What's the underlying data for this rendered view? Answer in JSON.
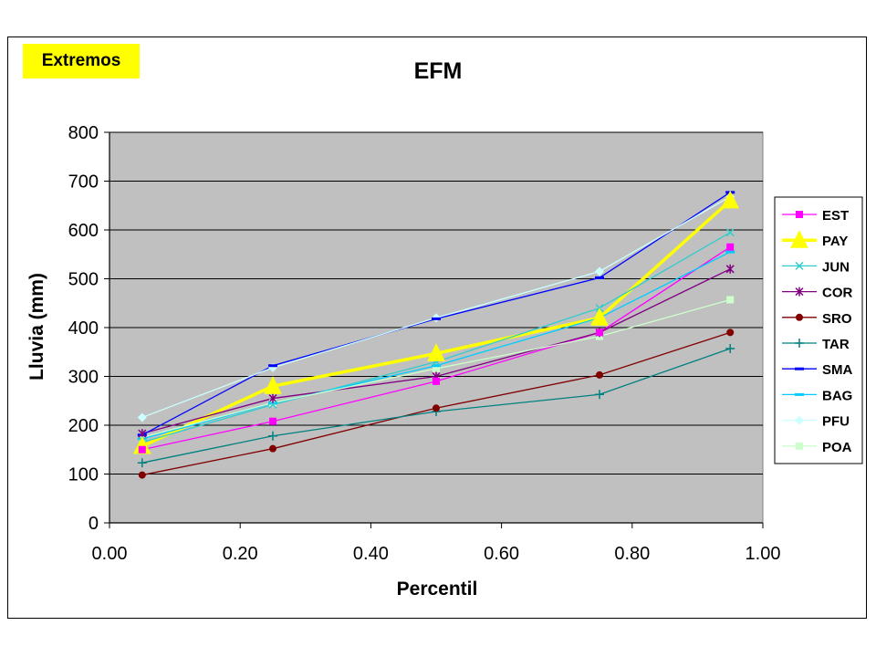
{
  "badge": "Extremos",
  "chart_data": {
    "type": "line",
    "title": "EFM",
    "xlabel": "Percentil",
    "ylabel": "Lluvia (mm)",
    "xlim": [
      0,
      1
    ],
    "ylim": [
      0,
      800
    ],
    "xticks": [
      "0.00",
      "0.20",
      "0.40",
      "0.60",
      "0.80",
      "1.00"
    ],
    "yticks": [
      "0",
      "100",
      "200",
      "300",
      "400",
      "500",
      "600",
      "700",
      "800"
    ],
    "grid": "horizontal",
    "plot_background": "#c0c0c0",
    "legend_position": "right",
    "x": [
      0.05,
      0.25,
      0.5,
      0.75,
      0.95
    ],
    "series": [
      {
        "name": "EST",
        "color": "#ff00ff",
        "marker": "square",
        "values": [
          150,
          208,
          290,
          390,
          565
        ]
      },
      {
        "name": "PAY",
        "color": "#ffff00",
        "marker": "triangle",
        "thick": true,
        "values": [
          157,
          280,
          347,
          420,
          660
        ]
      },
      {
        "name": "JUN",
        "color": "#33cccc",
        "marker": "x",
        "values": [
          165,
          242,
          330,
          440,
          595
        ]
      },
      {
        "name": "COR",
        "color": "#800080",
        "marker": "star",
        "values": [
          183,
          255,
          300,
          390,
          520
        ]
      },
      {
        "name": "SRO",
        "color": "#800000",
        "marker": "circle",
        "values": [
          98,
          152,
          235,
          303,
          390
        ]
      },
      {
        "name": "TAR",
        "color": "#008080",
        "marker": "plus",
        "values": [
          123,
          178,
          228,
          263,
          357
        ]
      },
      {
        "name": "SMA",
        "color": "#0000ff",
        "marker": "dash",
        "values": [
          180,
          322,
          418,
          502,
          677
        ]
      },
      {
        "name": "BAG",
        "color": "#00ccff",
        "marker": "dash",
        "values": [
          172,
          245,
          322,
          420,
          555
        ]
      },
      {
        "name": "PFU",
        "color": "#ccffff",
        "marker": "diamond",
        "values": [
          216,
          318,
          420,
          515,
          668
        ]
      },
      {
        "name": "POA",
        "color": "#ccffcc",
        "marker": "square",
        "values": [
          175,
          246,
          316,
          382,
          457
        ]
      }
    ]
  }
}
